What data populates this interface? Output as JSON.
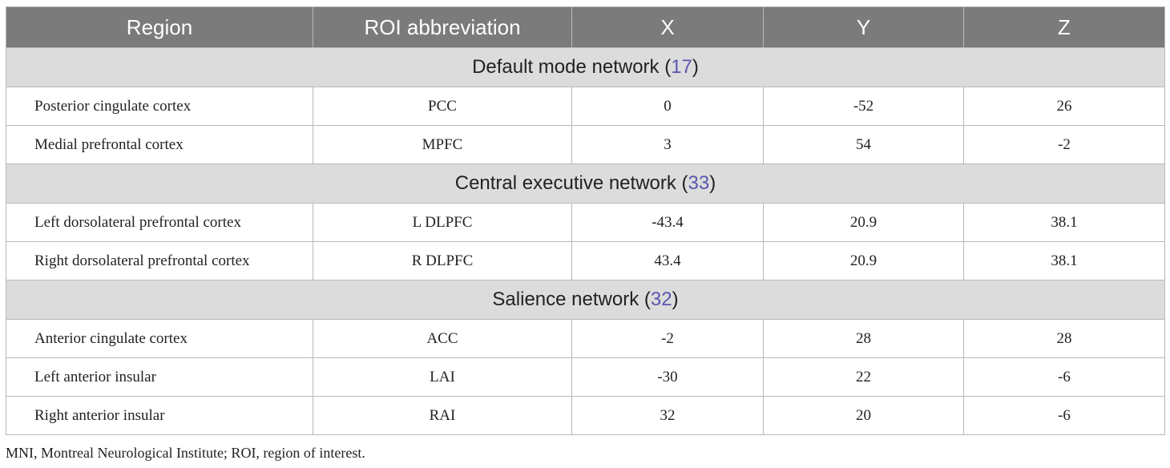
{
  "table": {
    "headers": [
      "Region",
      "ROI abbreviation",
      "X",
      "Y",
      "Z"
    ],
    "groups": [
      {
        "name": "Default mode network",
        "ref": "17",
        "rows": [
          [
            "Posterior cingulate cortex",
            "PCC",
            "0",
            "-52",
            "26"
          ],
          [
            "Medial prefrontal cortex",
            "MPFC",
            "3",
            "54",
            "-2"
          ]
        ]
      },
      {
        "name": "Central executive network",
        "ref": "33",
        "rows": [
          [
            "Left dorsolateral prefrontal cortex",
            "L DLPFC",
            "-43.4",
            "20.9",
            "38.1"
          ],
          [
            "Right dorsolateral prefrontal cortex",
            "R DLPFC",
            "43.4",
            "20.9",
            "38.1"
          ]
        ]
      },
      {
        "name": "Salience network",
        "ref": "32",
        "rows": [
          [
            "Anterior cingulate cortex",
            "ACC",
            "-2",
            "28",
            "28"
          ],
          [
            "Left anterior insular",
            "LAI",
            "-30",
            "22",
            "-6"
          ],
          [
            "Right anterior insular",
            "RAI",
            "32",
            "20",
            "-6"
          ]
        ]
      }
    ]
  },
  "footnote": "MNI, Montreal Neurological Institute; ROI, region of interest.",
  "colors": {
    "header_bg": "#7a7b7a",
    "group_bg": "#dcdcdc",
    "ref_link": "#5a56b0",
    "border": "#b8b8b8"
  }
}
